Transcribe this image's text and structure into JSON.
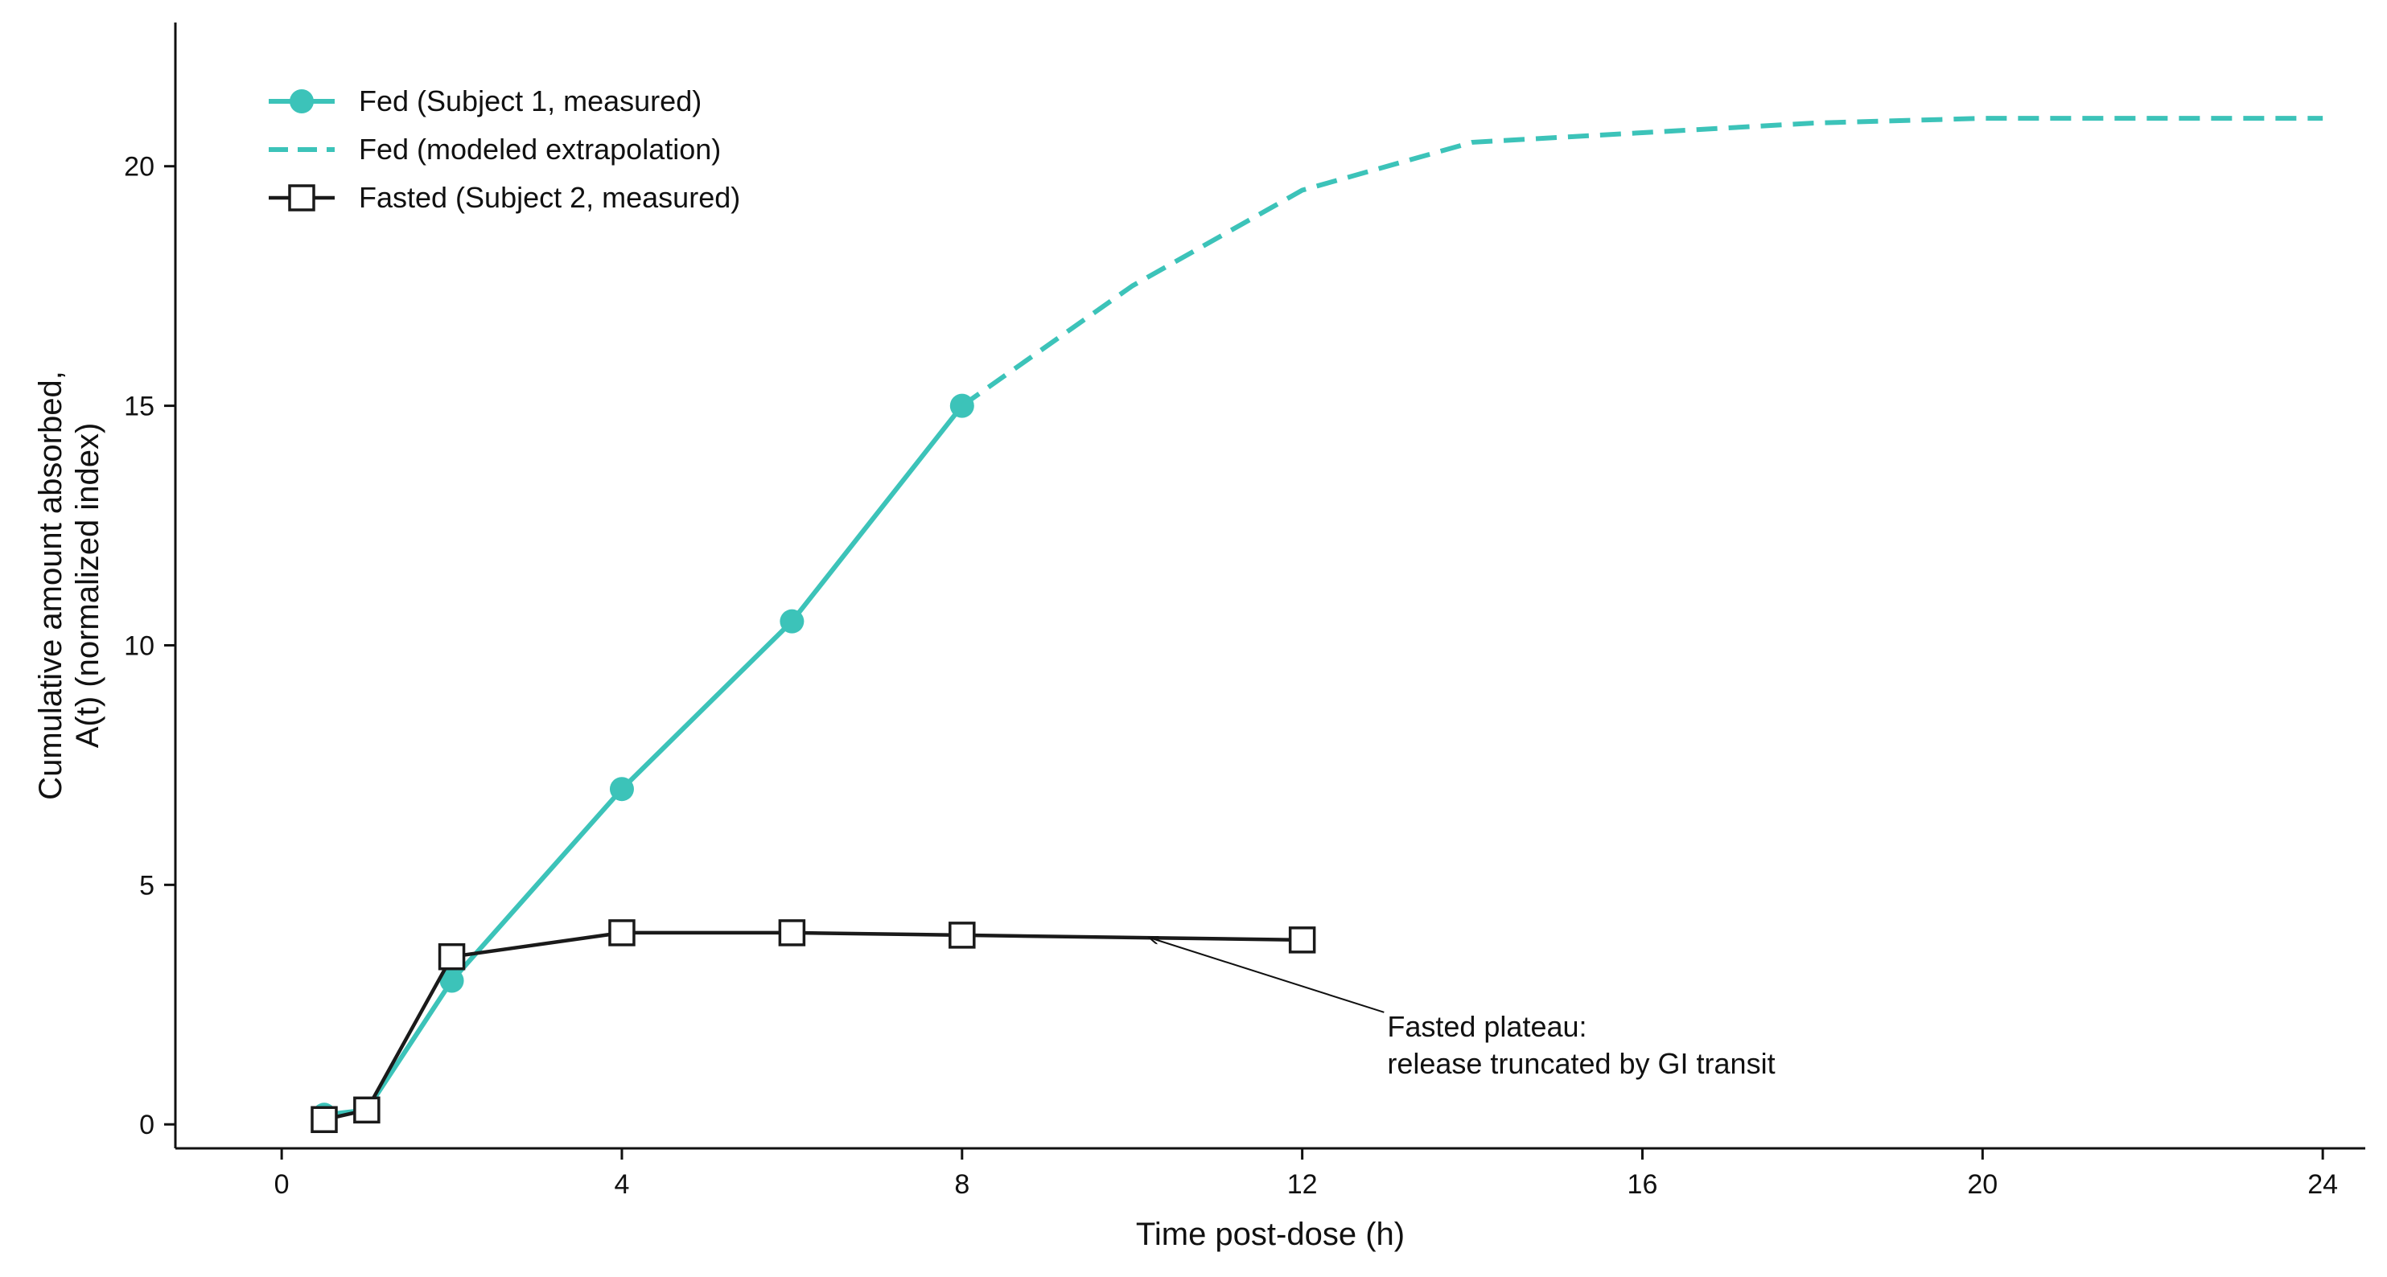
{
  "chart_data": {
    "type": "line",
    "xlabel": "Time post-dose (h)",
    "ylabel_lines": [
      "Cumulative amount absorbed,",
      "A(t) (normalized index)"
    ],
    "xlim": [
      -1.25,
      24.5
    ],
    "ylim": [
      -0.5,
      23
    ],
    "xticks": [
      0,
      4,
      8,
      12,
      16,
      20,
      24
    ],
    "yticks": [
      0,
      5,
      10,
      15,
      20
    ],
    "grid": false,
    "legend_position": "top-left",
    "series": [
      {
        "key": "fed_measured",
        "name": "Fed (Subject 1, measured)",
        "color": "#3cc3b9",
        "style": "solid",
        "marker": "circle",
        "x": [
          0.5,
          1,
          2,
          4,
          6,
          8
        ],
        "y": [
          0.2,
          0.3,
          3.0,
          7.0,
          10.5,
          15.0
        ]
      },
      {
        "key": "fed_modeled",
        "name": "Fed (modeled extrapolation)",
        "color": "#3cc3b9",
        "style": "dashed",
        "marker": "none",
        "x": [
          8,
          10,
          12,
          14,
          16,
          18,
          20,
          22,
          24
        ],
        "y": [
          15.0,
          17.5,
          19.5,
          20.5,
          20.7,
          20.9,
          21.0,
          21.0,
          21.0
        ]
      },
      {
        "key": "fasted_measured",
        "name": "Fasted (Subject 2, measured)",
        "color": "#1a1a1a",
        "style": "solid",
        "marker": "square",
        "x": [
          0.5,
          1,
          2,
          4,
          6,
          8,
          12
        ],
        "y": [
          0.1,
          0.3,
          3.5,
          4.0,
          4.0,
          3.95,
          3.85
        ]
      }
    ],
    "annotations": [
      {
        "lines": [
          "Fasted plateau:",
          "release truncated by GI transit"
        ],
        "text_x": 13.0,
        "text_y": 1.5,
        "arrow_to_x": 10.2,
        "arrow_to_y": 3.9
      }
    ]
  }
}
